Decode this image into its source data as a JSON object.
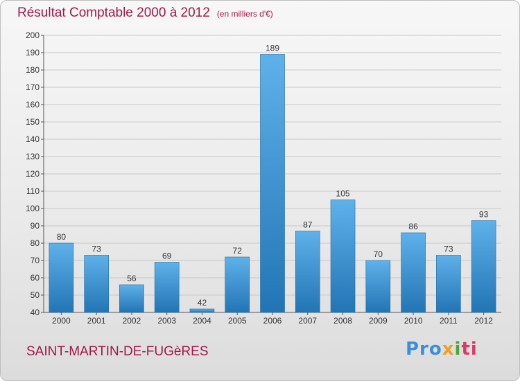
{
  "header": {
    "title": "Résultat Comptable 2000 à 2012",
    "unit": "(en milliers d'€)"
  },
  "footer": {
    "town": "SAINT-MARTIN-DE-FUGèRES",
    "logo": [
      "Pro",
      "x",
      "i",
      "ti"
    ]
  },
  "colors": {
    "bar_light": "#5fb1ea",
    "bar_dark": "#2275b4",
    "title": "#a01848",
    "grid": "#c8c8c8"
  },
  "chart_data": {
    "type": "bar",
    "title": "Résultat Comptable 2000 à 2012",
    "subtitle": "(en milliers d'€)",
    "categories": [
      "2000",
      "2001",
      "2002",
      "2003",
      "2004",
      "2005",
      "2006",
      "2007",
      "2008",
      "2009",
      "2010",
      "2011",
      "2012"
    ],
    "values": [
      80,
      73,
      56,
      69,
      42,
      72,
      189,
      87,
      105,
      70,
      86,
      73,
      93
    ],
    "xlabel": "",
    "ylabel": "",
    "ylim": [
      40,
      200
    ],
    "ytick_step": 10,
    "grid": true,
    "legend": "none"
  }
}
